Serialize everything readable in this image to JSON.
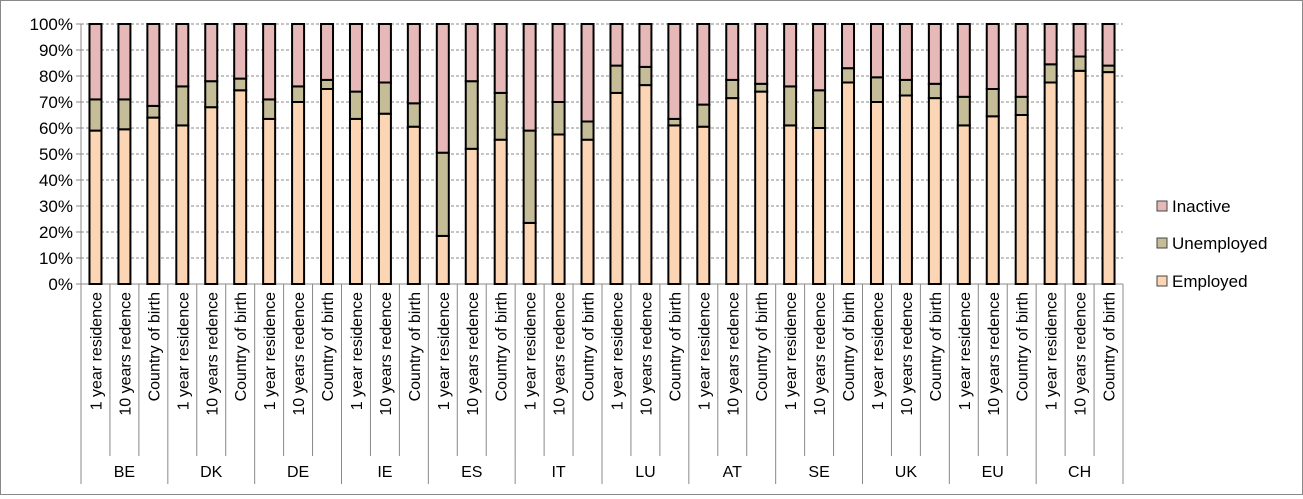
{
  "chart_data": {
    "type": "bar",
    "stacked": true,
    "percent": true,
    "title": "",
    "xlabel": "",
    "ylabel": "",
    "ylim": [
      0,
      100
    ],
    "yticks": [
      "0%",
      "10%",
      "20%",
      "30%",
      "40%",
      "50%",
      "60%",
      "70%",
      "80%",
      "90%",
      "100%"
    ],
    "grid": true,
    "legend_position": "right",
    "groups": [
      "BE",
      "DK",
      "DE",
      "IE",
      "ES",
      "IT",
      "LU",
      "AT",
      "SE",
      "UK",
      "EU",
      "CH"
    ],
    "subcategories": [
      "1 year residence",
      "10 years redence",
      "Country of birth"
    ],
    "series": [
      {
        "name": "Employed",
        "color": "#FCD5B4",
        "values": [
          59,
          59.5,
          64,
          61,
          68,
          74.5,
          63.5,
          70,
          75,
          63.5,
          65.5,
          60.5,
          18.5,
          52,
          55.5,
          23.5,
          57.5,
          55.5,
          73.5,
          76.5,
          61,
          60.5,
          71.5,
          74,
          61,
          60,
          77.5,
          70,
          72.5,
          71.5,
          61,
          64.5,
          65,
          77.5,
          82,
          81.5
        ]
      },
      {
        "name": "Unemployed",
        "color": "#C4BD97",
        "values": [
          12,
          11.5,
          4.5,
          15,
          10,
          4.5,
          7.5,
          6,
          3.5,
          10.5,
          12,
          9,
          32,
          26,
          18,
          35.5,
          12.5,
          7,
          10.5,
          7,
          2.5,
          8.5,
          7,
          3,
          15,
          14.5,
          5.5,
          9.5,
          6,
          5.5,
          11,
          10.5,
          7,
          7,
          5.5,
          2.5
        ]
      },
      {
        "name": "Inactive",
        "color": "#E6B9B8",
        "values": [
          29,
          29,
          31.5,
          24,
          22,
          21,
          29,
          24,
          21.5,
          26,
          22.5,
          30.5,
          49.5,
          22,
          26.5,
          41,
          30,
          37.5,
          16,
          16.5,
          36.5,
          31,
          21.5,
          23,
          24,
          25.5,
          17,
          20.5,
          21.5,
          23,
          28,
          25,
          28,
          15.5,
          12.5,
          16
        ]
      }
    ]
  }
}
